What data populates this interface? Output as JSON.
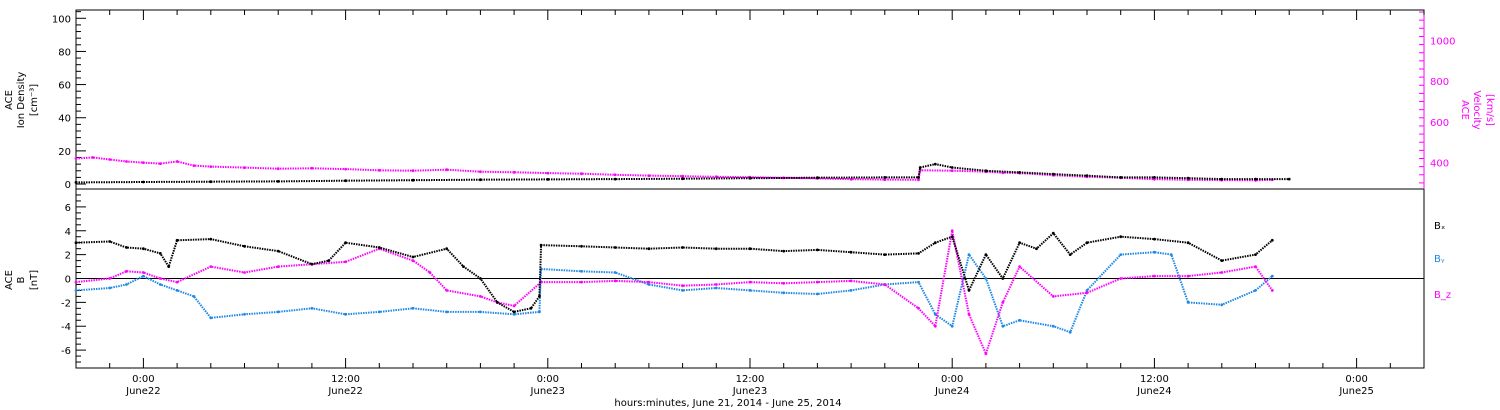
{
  "time_axis": {
    "label": "hours:minutes, June 21, 2014 - June 25, 2014",
    "ticks": [
      {
        "t": 4.0,
        "time": "0:00",
        "date": "June22"
      },
      {
        "t": 16.0,
        "time": "12:00",
        "date": "June22"
      },
      {
        "t": 28.0,
        "time": "0:00",
        "date": "June23"
      },
      {
        "t": 40.0,
        "time": "12:00",
        "date": "June23"
      },
      {
        "t": 52.0,
        "time": "0:00",
        "date": "June24"
      },
      {
        "t": 64.0,
        "time": "12:00",
        "date": "June24"
      },
      {
        "t": 76.0,
        "time": "0:00",
        "date": "June25"
      }
    ],
    "range_hours": [
      0,
      80
    ],
    "note_t_units": "hours from left plot edge"
  },
  "colors": {
    "black": "#000000",
    "magenta": "#ff00ff",
    "blue": "#1e88e5"
  },
  "chart_data": [
    {
      "type": "scatter",
      "panel": "top",
      "left_axis": {
        "label_lines": [
          "ACE",
          "Ion Density",
          "[cm⁻³]"
        ],
        "ylim": [
          -3,
          105
        ],
        "ticks": [
          0,
          20,
          40,
          60,
          80,
          100
        ]
      },
      "right_axis": {
        "label_lines": [
          "ACE",
          "Velocity",
          "[km/s]"
        ],
        "ylim": [
          270,
          1150
        ],
        "ticks": [
          400,
          600,
          800,
          1000
        ]
      },
      "series": [
        {
          "key": "density",
          "color": "#000000",
          "axis": "left",
          "points": [
            [
              0,
              1
            ],
            [
              4,
              1.2
            ],
            [
              8,
              1.4
            ],
            [
              12,
              1.6
            ],
            [
              16,
              2
            ],
            [
              20,
              2.3
            ],
            [
              24,
              2.6
            ],
            [
              28,
              2.8
            ],
            [
              32,
              3
            ],
            [
              36,
              3.2
            ],
            [
              40,
              3.5
            ],
            [
              44,
              3.8
            ],
            [
              48,
              4
            ],
            [
              50,
              4
            ],
            [
              50.1,
              10
            ],
            [
              51,
              12
            ],
            [
              52,
              10
            ],
            [
              54,
              8
            ],
            [
              56,
              7
            ],
            [
              58,
              6
            ],
            [
              60,
              5
            ],
            [
              62,
              4
            ],
            [
              64,
              4
            ],
            [
              66,
              3.5
            ],
            [
              68,
              3
            ],
            [
              70,
              3
            ],
            [
              72,
              3
            ]
          ]
        },
        {
          "key": "velocity",
          "color": "#ff00ff",
          "axis": "right",
          "points": [
            [
              0,
              420
            ],
            [
              1,
              425
            ],
            [
              2,
              415
            ],
            [
              3,
              405
            ],
            [
              4,
              400
            ],
            [
              5,
              395
            ],
            [
              6,
              405
            ],
            [
              7,
              385
            ],
            [
              8,
              380
            ],
            [
              10,
              375
            ],
            [
              12,
              370
            ],
            [
              14,
              372
            ],
            [
              16,
              368
            ],
            [
              18,
              362
            ],
            [
              20,
              360
            ],
            [
              22,
              365
            ],
            [
              24,
              355
            ],
            [
              26,
              352
            ],
            [
              28,
              348
            ],
            [
              30,
              345
            ],
            [
              32,
              340
            ],
            [
              34,
              336
            ],
            [
              36,
              333
            ],
            [
              38,
              330
            ],
            [
              40,
              328
            ],
            [
              42,
              325
            ],
            [
              44,
              322
            ],
            [
              46,
              318
            ],
            [
              48,
              316
            ],
            [
              50,
              315
            ],
            [
              50.1,
              362
            ],
            [
              52,
              360
            ],
            [
              54,
              355
            ],
            [
              55,
              350
            ],
            [
              56,
              348
            ],
            [
              58,
              338
            ],
            [
              60,
              330
            ],
            [
              62,
              325
            ],
            [
              64,
              318
            ],
            [
              66,
              315
            ],
            [
              68,
              314
            ],
            [
              70,
              313
            ],
            [
              71,
              315
            ]
          ]
        }
      ]
    },
    {
      "type": "scatter",
      "panel": "bottom",
      "y_axis": {
        "label_lines": [
          "ACE",
          "B",
          "[nT]"
        ],
        "ylim": [
          -7.5,
          7.5
        ],
        "ticks": [
          -6,
          -4,
          -2,
          0,
          2,
          4,
          6
        ]
      },
      "legend": [
        "Bₓ",
        "Bᵧ",
        "B_z"
      ],
      "series": [
        {
          "key": "Bx",
          "name": "Bₓ",
          "color": "#000000",
          "points": [
            [
              0,
              3
            ],
            [
              2,
              3.1
            ],
            [
              3,
              2.6
            ],
            [
              4,
              2.5
            ],
            [
              5,
              2.1
            ],
            [
              5.5,
              1
            ],
            [
              6,
              3.2
            ],
            [
              8,
              3.3
            ],
            [
              10,
              2.7
            ],
            [
              12,
              2.3
            ],
            [
              14,
              1.2
            ],
            [
              15,
              1.5
            ],
            [
              16,
              3
            ],
            [
              18,
              2.6
            ],
            [
              20,
              1.8
            ],
            [
              22,
              2.5
            ],
            [
              23,
              1
            ],
            [
              24,
              0
            ],
            [
              25,
              -2
            ],
            [
              26,
              -2.8
            ],
            [
              27,
              -2.5
            ],
            [
              27.5,
              -1.5
            ],
            [
              27.6,
              2.8
            ],
            [
              30,
              2.7
            ],
            [
              32,
              2.6
            ],
            [
              34,
              2.5
            ],
            [
              36,
              2.6
            ],
            [
              38,
              2.5
            ],
            [
              40,
              2.5
            ],
            [
              42,
              2.3
            ],
            [
              44,
              2.4
            ],
            [
              46,
              2.2
            ],
            [
              48,
              2
            ],
            [
              50,
              2.1
            ],
            [
              51,
              3
            ],
            [
              52,
              3.5
            ],
            [
              53,
              -1
            ],
            [
              54,
              2
            ],
            [
              55,
              0
            ],
            [
              56,
              3
            ],
            [
              57,
              2.5
            ],
            [
              58,
              3.8
            ],
            [
              59,
              2
            ],
            [
              60,
              3
            ],
            [
              62,
              3.5
            ],
            [
              64,
              3.3
            ],
            [
              66,
              3
            ],
            [
              68,
              1.5
            ],
            [
              70,
              2
            ],
            [
              71,
              3.2
            ]
          ]
        },
        {
          "key": "By",
          "name": "Bᵧ",
          "color": "#1e88e5",
          "points": [
            [
              0,
              -1
            ],
            [
              2,
              -0.8
            ],
            [
              3,
              -0.5
            ],
            [
              4,
              0.2
            ],
            [
              5,
              -0.5
            ],
            [
              6,
              -1
            ],
            [
              7,
              -1.5
            ],
            [
              8,
              -3.3
            ],
            [
              10,
              -3
            ],
            [
              12,
              -2.8
            ],
            [
              14,
              -2.5
            ],
            [
              16,
              -3
            ],
            [
              18,
              -2.8
            ],
            [
              20,
              -2.5
            ],
            [
              22,
              -2.8
            ],
            [
              24,
              -2.8
            ],
            [
              26,
              -3
            ],
            [
              27.5,
              -2.8
            ],
            [
              27.6,
              0.8
            ],
            [
              30,
              0.6
            ],
            [
              32,
              0.5
            ],
            [
              34,
              -0.5
            ],
            [
              36,
              -1
            ],
            [
              38,
              -0.8
            ],
            [
              40,
              -1
            ],
            [
              42,
              -1.2
            ],
            [
              44,
              -1.3
            ],
            [
              46,
              -1
            ],
            [
              48,
              -0.5
            ],
            [
              50,
              -0.3
            ],
            [
              51,
              -3
            ],
            [
              52,
              -4
            ],
            [
              53,
              2
            ],
            [
              54,
              0
            ],
            [
              55,
              -4
            ],
            [
              56,
              -3.5
            ],
            [
              58,
              -4
            ],
            [
              59,
              -4.5
            ],
            [
              60,
              -1
            ],
            [
              62,
              2
            ],
            [
              64,
              2.2
            ],
            [
              65,
              2
            ],
            [
              66,
              -2
            ],
            [
              68,
              -2.2
            ],
            [
              70,
              -1
            ],
            [
              71,
              0.2
            ]
          ]
        },
        {
          "key": "Bz",
          "name": "B_z",
          "color": "#ff00ff",
          "points": [
            [
              0,
              -0.3
            ],
            [
              2,
              0
            ],
            [
              3,
              0.6
            ],
            [
              4,
              0.5
            ],
            [
              5,
              0
            ],
            [
              6,
              -0.3
            ],
            [
              8,
              1
            ],
            [
              10,
              0.5
            ],
            [
              12,
              1
            ],
            [
              14,
              1.2
            ],
            [
              16,
              1.4
            ],
            [
              18,
              2.5
            ],
            [
              20,
              1.5
            ],
            [
              21,
              0.5
            ],
            [
              22,
              -1
            ],
            [
              24,
              -1.5
            ],
            [
              25,
              -2
            ],
            [
              26,
              -2.3
            ],
            [
              27.6,
              -0.3
            ],
            [
              30,
              -0.3
            ],
            [
              32,
              -0.2
            ],
            [
              34,
              -0.3
            ],
            [
              36,
              -0.6
            ],
            [
              38,
              -0.5
            ],
            [
              40,
              -0.3
            ],
            [
              42,
              -0.4
            ],
            [
              44,
              -0.3
            ],
            [
              46,
              -0.2
            ],
            [
              48,
              -0.5
            ],
            [
              50,
              -2.5
            ],
            [
              51,
              -4
            ],
            [
              52,
              4
            ],
            [
              53,
              -3
            ],
            [
              54,
              -6.3
            ],
            [
              55,
              -2
            ],
            [
              56,
              1
            ],
            [
              58,
              -1.5
            ],
            [
              60,
              -1.2
            ],
            [
              62,
              0
            ],
            [
              64,
              0.2
            ],
            [
              66,
              0.2
            ],
            [
              68,
              0.5
            ],
            [
              70,
              1
            ],
            [
              71,
              -1
            ]
          ]
        }
      ]
    }
  ]
}
